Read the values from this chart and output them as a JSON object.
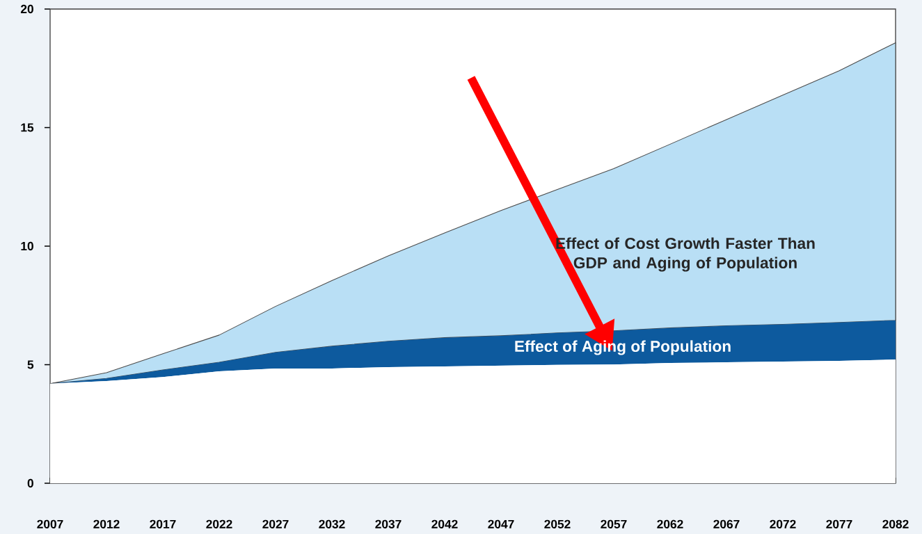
{
  "chart_data": {
    "type": "area",
    "stacked": true,
    "x": [
      2007,
      2012,
      2017,
      2022,
      2027,
      2032,
      2037,
      2042,
      2047,
      2052,
      2057,
      2062,
      2067,
      2072,
      2077,
      2082
    ],
    "series": [
      {
        "color": "#ffffff",
        "values": [
          4.2,
          4.31,
          4.48,
          4.72,
          4.84,
          4.84,
          4.9,
          4.93,
          4.96,
          4.99,
          5.01,
          5.07,
          5.1,
          5.13,
          5.16,
          5.22
        ]
      },
      {
        "color": "#0d5a9e",
        "values": [
          0,
          0.11,
          0.3,
          0.38,
          0.68,
          0.94,
          1.09,
          1.21,
          1.26,
          1.35,
          1.42,
          1.48,
          1.54,
          1.57,
          1.62,
          1.65
        ]
      },
      {
        "color": "#b9dff5",
        "values": [
          0,
          0.24,
          0.68,
          1.15,
          1.94,
          2.77,
          3.6,
          4.42,
          5.28,
          6.05,
          6.84,
          7.75,
          8.7,
          9.67,
          10.62,
          11.71
        ]
      }
    ],
    "xlim": [
      2007,
      2082
    ],
    "xticks": [
      2007,
      2012,
      2017,
      2022,
      2027,
      2032,
      2037,
      2042,
      2047,
      2052,
      2057,
      2062,
      2067,
      2072,
      2077,
      2082
    ],
    "ylim": [
      0,
      20
    ],
    "yticks": [
      0,
      5,
      10,
      15,
      20
    ],
    "annotations": [
      "Effect of Cost Growth Faster Than GDP and Aging of Population",
      "Effect of Aging of Population"
    ],
    "grid": false
  }
}
